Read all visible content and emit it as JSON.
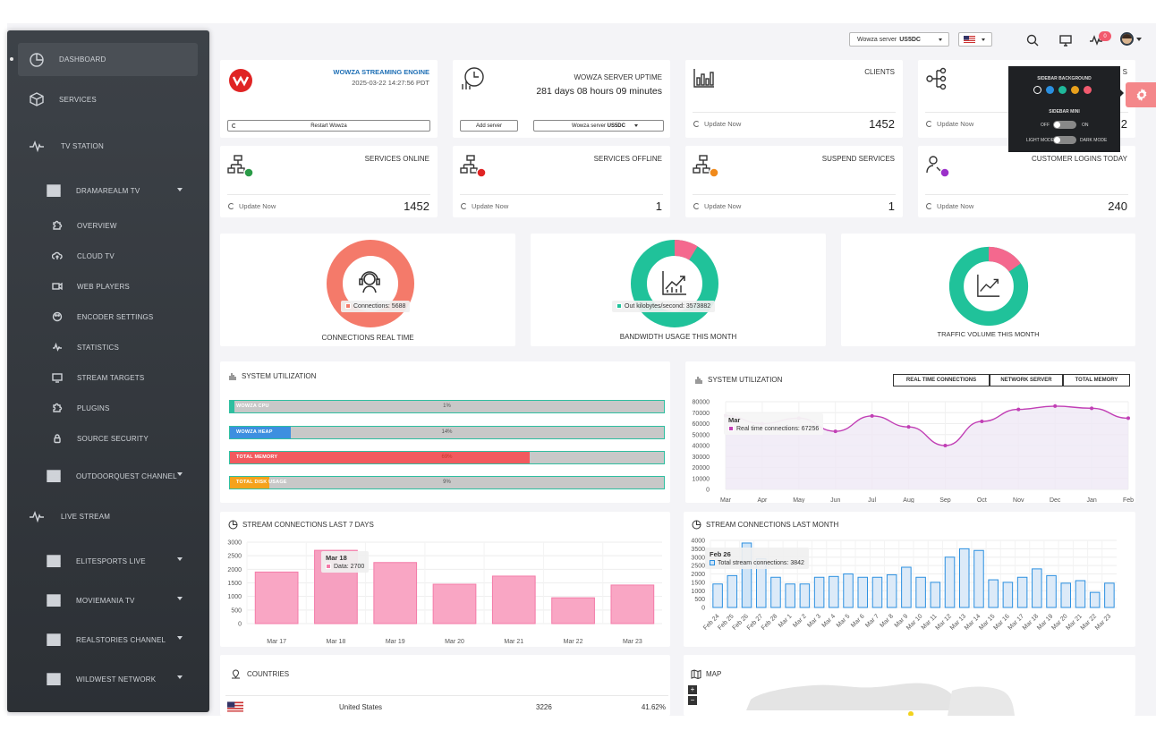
{
  "header": {
    "server_select_prefix": "Wowza server",
    "server_select_value": "US5DC",
    "notification_count": "0"
  },
  "sidebar": {
    "items": [
      {
        "label": "DASHBOARD"
      },
      {
        "label": "SERVICES"
      },
      {
        "label": "TV STATION"
      },
      {
        "label": "DRAMAREALM TV"
      },
      {
        "label": "OVERVIEW"
      },
      {
        "label": "CLOUD TV"
      },
      {
        "label": "WEB PLAYERS"
      },
      {
        "label": "ENCODER SETTINGS"
      },
      {
        "label": "STATISTICS"
      },
      {
        "label": "STREAM TARGETS"
      },
      {
        "label": "PLUGINS"
      },
      {
        "label": "SOURCE SECURITY"
      },
      {
        "label": "OUTDOORQUEST CHANNEL"
      },
      {
        "label": "LIVE STREAM"
      },
      {
        "label": "ELITESPORTS LIVE"
      },
      {
        "label": "MOVIEMANIA TV"
      },
      {
        "label": "REALSTORIES CHANNEL"
      },
      {
        "label": "WILDWEST NETWORK"
      }
    ]
  },
  "settings_panel": {
    "bg_title": "SIDEBAR BACKGROUND",
    "mini_title": "SIDEBAR MINI",
    "off": "OFF",
    "on": "ON",
    "light": "LIGHT MODE",
    "dark": "DARK MODE",
    "colors": [
      "#ffffff",
      "#2a8fe0",
      "#1fb89a",
      "#e8a01c",
      "#f25a6e"
    ]
  },
  "cards": {
    "engine": {
      "title": "WOWZA STREAMING ENGINE",
      "datetime": "2025-03-22 14:27:56 PDT",
      "restart_label": "Restart Wowza"
    },
    "uptime": {
      "title": "WOWZA SERVER UPTIME",
      "value": "281 days 08 hours 09 minutes",
      "add_label": "Add server",
      "select_prefix": "Wowza server",
      "select_value": "US5DC"
    },
    "clients": {
      "title": "CLIENTS",
      "update": "Update Now",
      "value": "1452"
    },
    "fourth": {
      "title": "S",
      "update": "Update Now",
      "value": "2"
    },
    "online": {
      "title": "SERVICES ONLINE",
      "update": "Update Now",
      "value": "1452"
    },
    "offline": {
      "title": "SERVICES OFFLINE",
      "update": "Update Now",
      "value": "1"
    },
    "suspend": {
      "title": "SUSPEND SERVICES",
      "update": "Update Now",
      "value": "1"
    },
    "logins": {
      "title": "CUSTOMER LOGINS TODAY",
      "update": "Update Now",
      "value": "240"
    }
  },
  "donuts": {
    "connections": {
      "label": "CONNECTIONS REAL TIME",
      "tooltip": "Connections: 5688"
    },
    "bandwidth": {
      "label": "BANDWIDTH USAGE THIS MONTH",
      "tooltip": "Out kilobytes/second: 3573882"
    },
    "traffic": {
      "label": "TRAFFIC VOLUME THIS MONTH"
    }
  },
  "sysutil_bars": {
    "title": "SYSTEM UTILIZATION",
    "bars": [
      {
        "label": "WOWZA CPU",
        "pct_label": "1%",
        "fraction": 0.01,
        "color": "#2fbfa0"
      },
      {
        "label": "WOWZA HEAP",
        "pct_label": "14%",
        "fraction": 0.14,
        "color": "#3d8fe0"
      },
      {
        "label": "TOTAL MEMORY",
        "pct_label": "69%",
        "fraction": 0.69,
        "color": "#f25a5e"
      },
      {
        "label": "TOTAL DISK USAGE",
        "pct_label": "9%",
        "fraction": 0.09,
        "color": "#f5a21c"
      }
    ]
  },
  "sysutil_chart": {
    "title": "SYSTEM UTILIZATION",
    "tabs": [
      "REAL TIME CONNECTIONS",
      "NETWORK SERVER",
      "TOTAL MEMORY"
    ],
    "tooltip_title": "Mar",
    "tooltip_text": "Real time connections: 67256"
  },
  "week_chart": {
    "title": "STREAM CONNECTIONS LAST 7 DAYS",
    "tooltip_title": "Mar 18",
    "tooltip_text": "Data: 2700"
  },
  "month_chart": {
    "title": "STREAM CONNECTIONS LAST MONTH",
    "tooltip_title": "Feb 26",
    "tooltip_text": "Total stream connections: 3842"
  },
  "countries": {
    "title": "COUNTRIES",
    "rows": [
      {
        "name": "United States",
        "count": "3226",
        "pct": "41.62%"
      }
    ]
  },
  "map": {
    "title": "MAP",
    "zoom_in": "+",
    "zoom_out": "−"
  },
  "chart_data": [
    {
      "type": "line",
      "x": [
        "Mar",
        "Apr",
        "May",
        "Jun",
        "Jul",
        "Aug",
        "Sep",
        "Oct",
        "Nov",
        "Dec",
        "Jan",
        "Feb"
      ],
      "series": [
        {
          "values": [
            67256,
            60000,
            65000,
            53000,
            67000,
            57000,
            40000,
            62000,
            73000,
            76000,
            74000,
            65000
          ]
        }
      ],
      "ylim": [
        0,
        80000
      ],
      "yticks": [
        0,
        10000,
        20000,
        30000,
        40000,
        50000,
        60000,
        70000,
        80000
      ],
      "color": "#c13fb5"
    },
    {
      "type": "bar",
      "categories": [
        "Mar 17",
        "Mar 18",
        "Mar 19",
        "Mar 20",
        "Mar 21",
        "Mar 22",
        "Mar 23"
      ],
      "values": [
        1900,
        2700,
        2250,
        1450,
        1750,
        950,
        1420
      ],
      "ylim": [
        0,
        3000
      ],
      "yticks": [
        0,
        500,
        1000,
        1500,
        2000,
        2500,
        3000
      ],
      "color": "#f47ba8"
    },
    {
      "type": "bar",
      "categories": [
        "Feb 24",
        "Feb 25",
        "Feb 26",
        "Feb 27",
        "Feb 28",
        "Mar 1",
        "Mar 2",
        "Mar 3",
        "Mar 4",
        "Mar 5",
        "Mar 6",
        "Mar 7",
        "Mar 8",
        "Mar 9",
        "Mar 10",
        "Mar 11",
        "Mar 12",
        "Mar 13",
        "Mar 14",
        "Mar 15",
        "Mar 16",
        "Mar 17",
        "Mar 18",
        "Mar 19",
        "Mar 20",
        "Mar 21",
        "Mar 22",
        "Mar 23"
      ],
      "values": [
        1400,
        1900,
        3842,
        2900,
        1800,
        1400,
        1400,
        1800,
        1850,
        2000,
        1800,
        1800,
        1950,
        2400,
        1800,
        1500,
        3000,
        3500,
        3400,
        1650,
        1500,
        1800,
        2300,
        1900,
        1450,
        1600,
        900,
        1450
      ],
      "ylim": [
        0,
        4000
      ],
      "yticks": [
        0,
        500,
        1000,
        1500,
        2000,
        2500,
        3000,
        3500,
        4000
      ],
      "color": "#2a8fe0"
    }
  ]
}
